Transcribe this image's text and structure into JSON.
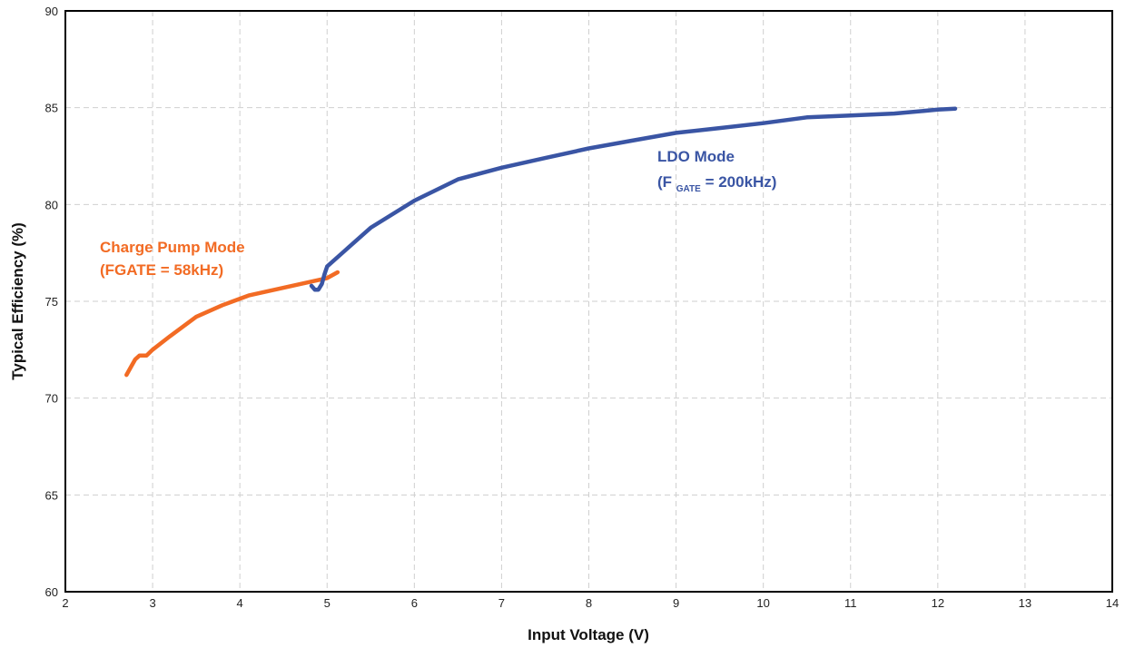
{
  "chart_data": {
    "type": "line",
    "title": "",
    "xlabel": "Input Voltage (V)",
    "ylabel": "Typical Efficiency (%)",
    "xlim": [
      2,
      14
    ],
    "ylim": [
      60,
      90
    ],
    "x_ticks": [
      2,
      3,
      4,
      5,
      6,
      7,
      8,
      9,
      10,
      11,
      12,
      13,
      14
    ],
    "y_ticks": [
      60,
      65,
      70,
      75,
      80,
      85,
      90
    ],
    "grid": true,
    "series": [
      {
        "color": "#F26B24",
        "points": [
          [
            2.7,
            71.2
          ],
          [
            2.75,
            71.6
          ],
          [
            2.8,
            72.0
          ],
          [
            2.85,
            72.2
          ],
          [
            2.93,
            72.2
          ],
          [
            3.0,
            72.5
          ],
          [
            3.2,
            73.2
          ],
          [
            3.5,
            74.2
          ],
          [
            3.8,
            74.8
          ],
          [
            4.1,
            75.3
          ],
          [
            4.5,
            75.7
          ],
          [
            4.8,
            76.0
          ],
          [
            5.0,
            76.2
          ],
          [
            5.12,
            76.5
          ]
        ]
      },
      {
        "color": "#3A55A4",
        "points": [
          [
            4.82,
            75.8
          ],
          [
            4.86,
            75.6
          ],
          [
            4.9,
            75.6
          ],
          [
            4.94,
            75.9
          ],
          [
            4.97,
            76.4
          ],
          [
            5.0,
            76.8
          ],
          [
            5.2,
            77.6
          ],
          [
            5.5,
            78.8
          ],
          [
            6.0,
            80.2
          ],
          [
            6.5,
            81.3
          ],
          [
            7.0,
            81.9
          ],
          [
            7.5,
            82.4
          ],
          [
            8.0,
            82.9
          ],
          [
            8.5,
            83.3
          ],
          [
            9.0,
            83.7
          ],
          [
            9.5,
            83.95
          ],
          [
            10.0,
            84.2
          ],
          [
            10.5,
            84.5
          ],
          [
            11.0,
            84.6
          ],
          [
            11.5,
            84.7
          ],
          [
            12.0,
            84.9
          ],
          [
            12.2,
            84.95
          ]
        ]
      }
    ],
    "annotations": {
      "charge_pump_line1": "Charge Pump Mode",
      "charge_pump_line2": "(FGATE = 58kHz)",
      "ldo_line1": "LDO Mode",
      "ldo_f": "(F",
      "ldo_sub": "GATE",
      "ldo_rest": " = 200kHz)"
    }
  }
}
